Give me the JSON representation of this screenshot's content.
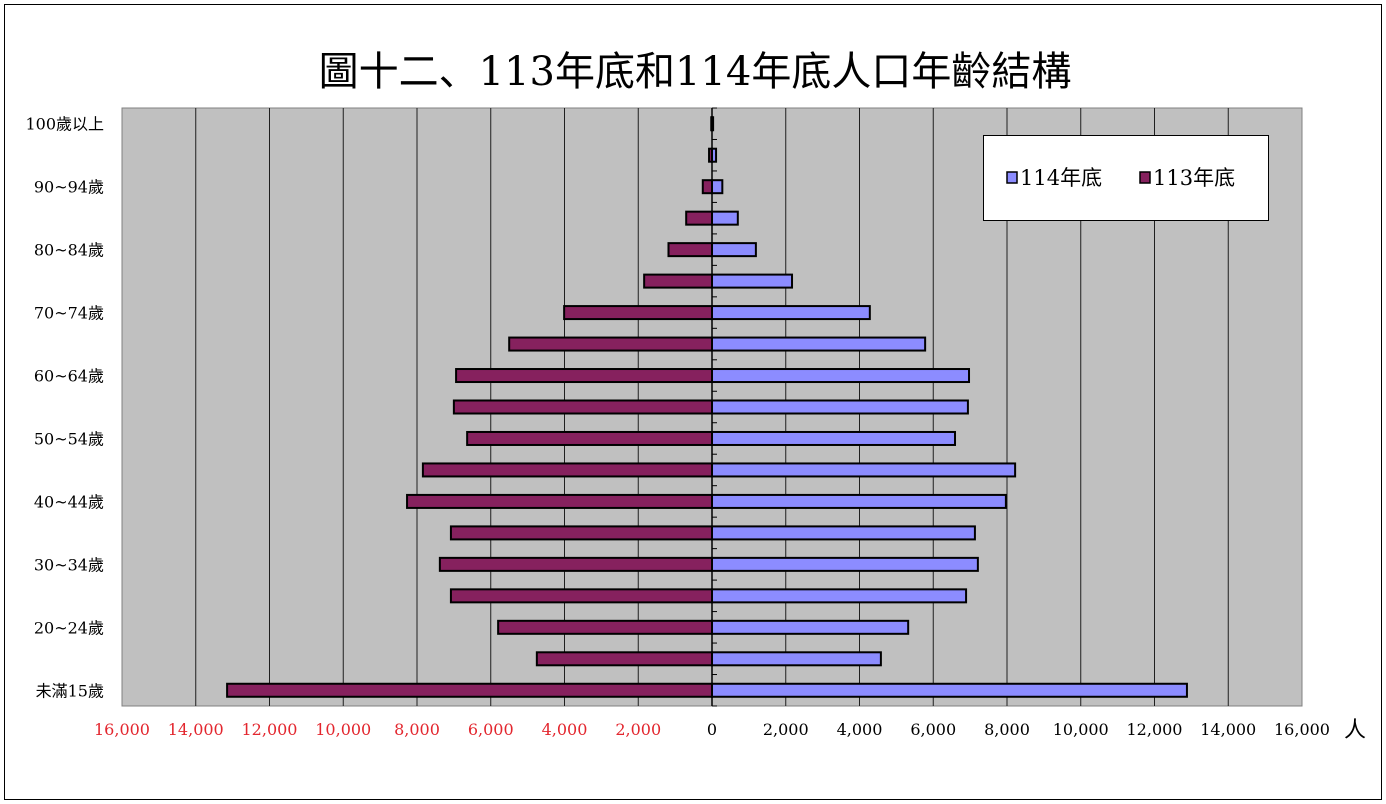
{
  "chart_data": {
    "type": "bar",
    "orientation": "horizontal",
    "title": "圖十二、113年底和114年底人口年齡結構",
    "categories": [
      "未滿15歲",
      "",
      "20~24歲",
      "",
      "30~34歲",
      "",
      "40~44歲",
      "",
      "50~54歲",
      "",
      "60~64歲",
      "",
      "70~74歲",
      "",
      "80~84歲",
      "",
      "90~94歲",
      "",
      "100歲以上"
    ],
    "series": [
      {
        "name": "114年底",
        "side": "right",
        "color": "#8C8CFF",
        "values": [
          12880,
          4580,
          5320,
          6890,
          7210,
          7130,
          7970,
          8220,
          6590,
          6940,
          6970,
          5780,
          4280,
          2170,
          1190,
          700,
          280,
          110,
          30
        ]
      },
      {
        "name": "113年底",
        "side": "left",
        "color": "#86215E",
        "values": [
          13150,
          4750,
          5800,
          7080,
          7380,
          7080,
          8270,
          7840,
          6640,
          7000,
          6940,
          5500,
          4010,
          1840,
          1180,
          700,
          250,
          80,
          20
        ]
      }
    ],
    "xlim": [
      -16000,
      16000
    ],
    "x_ticks": [
      -16000,
      -14000,
      -12000,
      -10000,
      -8000,
      -6000,
      -4000,
      -2000,
      0,
      2000,
      4000,
      6000,
      8000,
      10000,
      12000,
      14000,
      16000
    ],
    "x_tick_labels": [
      "16,000",
      "14,000",
      "12,000",
      "10,000",
      "8,000",
      "6,000",
      "4,000",
      "2,000",
      "0",
      "2,000",
      "4,000",
      "6,000",
      "8,000",
      "10,000",
      "12,000",
      "14,000",
      "16,000"
    ],
    "x_unit": "人",
    "grid": "vertical",
    "legend_placement": "top-right",
    "colors": {
      "plot_background": "#C0C0C0",
      "gridline": "#1F1F1F",
      "bar_border": "#000000",
      "left_tick_labels": "#E3262E",
      "right_tick_labels": "#000000"
    }
  }
}
